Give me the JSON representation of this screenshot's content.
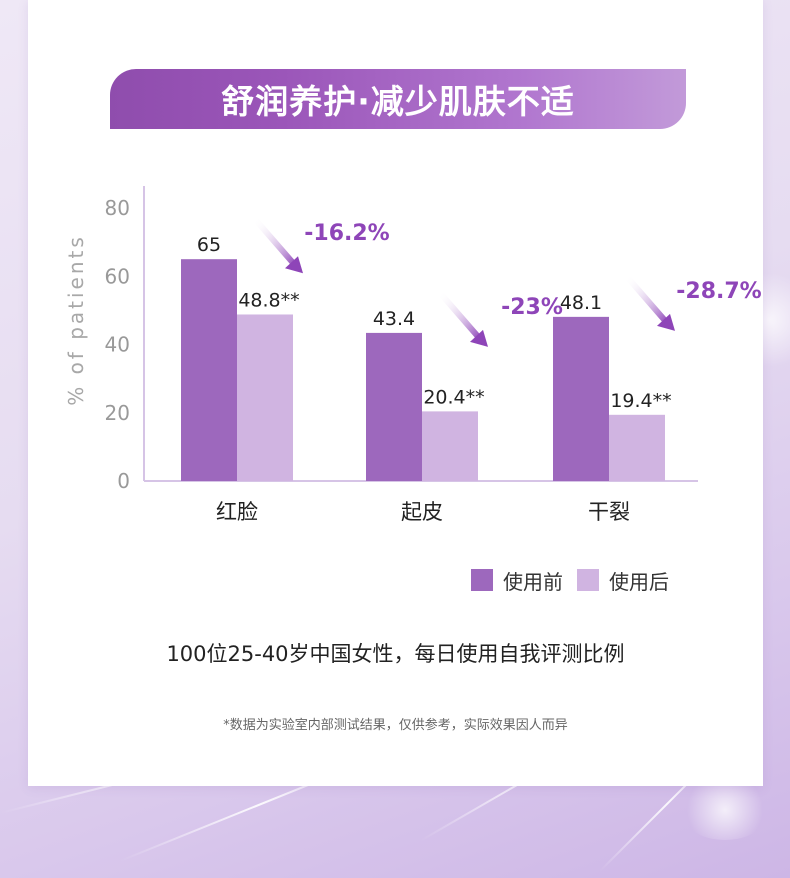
{
  "title": "舒润养护·减少肌肤不适",
  "chart_data": {
    "type": "bar",
    "title": "",
    "xlabel": "",
    "ylabel": "% of patients",
    "ylim": [
      0,
      80
    ],
    "yticks": [
      0,
      20,
      40,
      60,
      80
    ],
    "categories": [
      "红脸",
      "起皮",
      "干裂"
    ],
    "series": [
      {
        "name": "使用前",
        "values": [
          65,
          43.4,
          48.1
        ],
        "labels": [
          "65",
          "43.4",
          "48.1"
        ],
        "color": "#9d68bd"
      },
      {
        "name": "使用后",
        "values": [
          48.8,
          20.4,
          19.4
        ],
        "labels": [
          "48.8**",
          "20.4**",
          "19.4**"
        ],
        "color": "#d0b4e1"
      }
    ],
    "annotations": [
      "-16.2%",
      "-23%",
      "-28.7%"
    ],
    "annotation_color": "#8e45b8",
    "legend_position": "bottom-right",
    "grid": false
  },
  "caption": "100位25-40岁中国女性，每日使用自我评测比例",
  "footnote": "*数据为实验室内部测试结果，仅供参考，实际效果因人而异"
}
